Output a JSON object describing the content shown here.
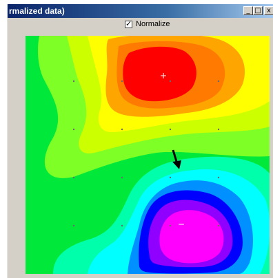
{
  "window": {
    "title": "rmalized data)"
  },
  "title_buttons": {
    "minimize": "_",
    "maximize": "□",
    "close": "x"
  },
  "options": {
    "normalize_label": "Normalize",
    "normalize_checked": true,
    "check_mark": "✓"
  },
  "plot": {
    "type": "filled-contour",
    "colors": [
      "#00e83a",
      "#7eff25",
      "#ccff00",
      "#ffff00",
      "#ffa500",
      "#ff7a00",
      "#ff0000",
      "#00ffaa",
      "#00ffff",
      "#0090ff",
      "#0000ff",
      "#9000ff",
      "#ff00ff"
    ]
  }
}
